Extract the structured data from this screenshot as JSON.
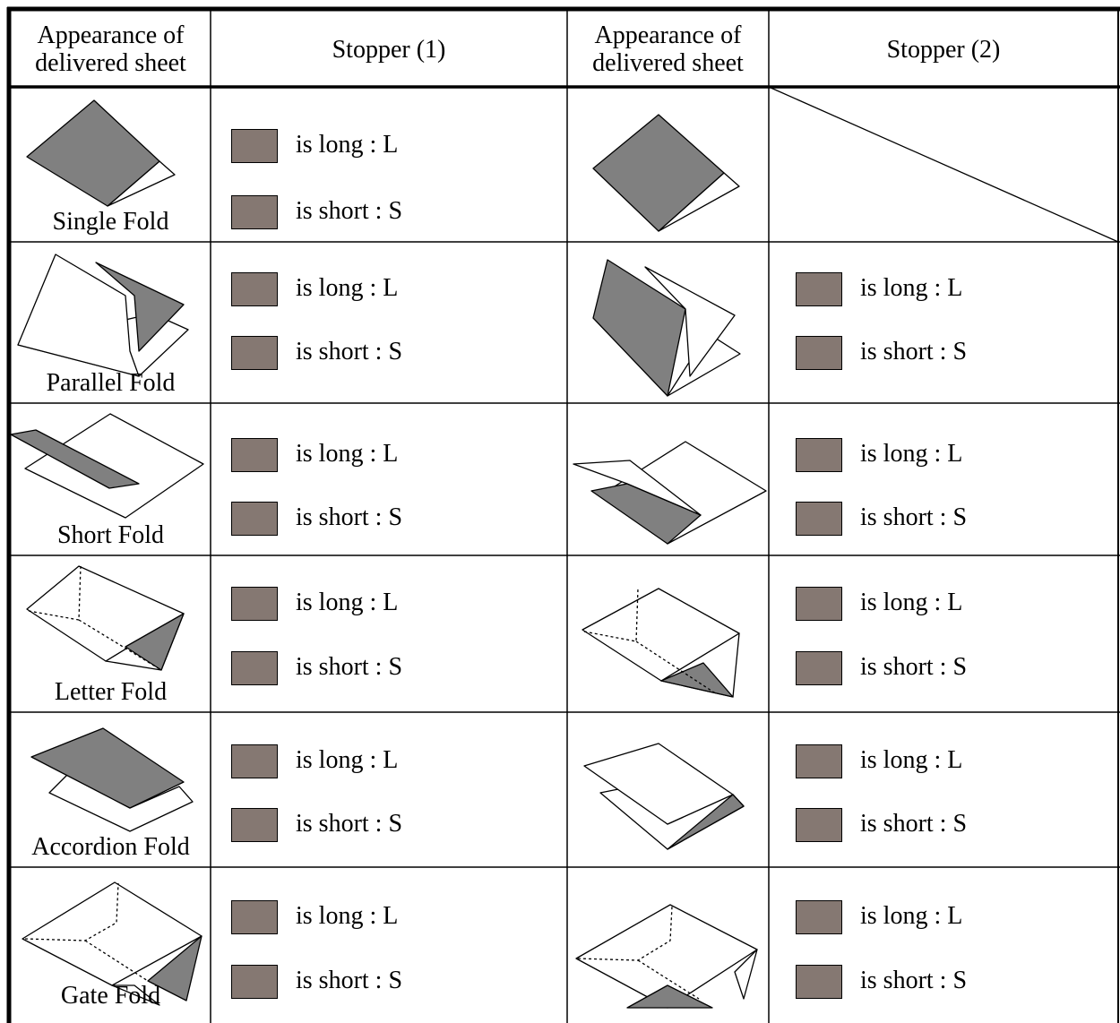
{
  "header": {
    "columns": [
      "Appearance of delivered sheet",
      "Stopper (1)",
      "Appearance of delivered sheet",
      "Stopper (2)"
    ]
  },
  "rows": [
    {
      "fold": "Single Fold",
      "stopper1": [
        "is long : L",
        "is short : S"
      ]
    },
    {
      "fold": "Parallel Fold",
      "stopper1": [
        "is long : L",
        "is short : S"
      ],
      "stopper2": [
        "is long : L",
        "is short : S"
      ]
    },
    {
      "fold": "Short Fold",
      "stopper1": [
        "is long : L",
        "is short : S"
      ],
      "stopper2": [
        "is long : L",
        "is short : S"
      ]
    },
    {
      "fold": "Letter Fold",
      "stopper1": [
        "is long : L",
        "is short : S"
      ],
      "stopper2": [
        "is long : L",
        "is short : S"
      ]
    },
    {
      "fold": "Accordion Fold",
      "stopper1": [
        "is long : L",
        "is short : S"
      ],
      "stopper2": [
        "is long : L",
        "is short : S"
      ]
    },
    {
      "fold": "Gate Fold",
      "stopper1": [
        "is long : L",
        "is short : S"
      ],
      "stopper2": [
        "is long : L",
        "is short : S"
      ]
    }
  ]
}
